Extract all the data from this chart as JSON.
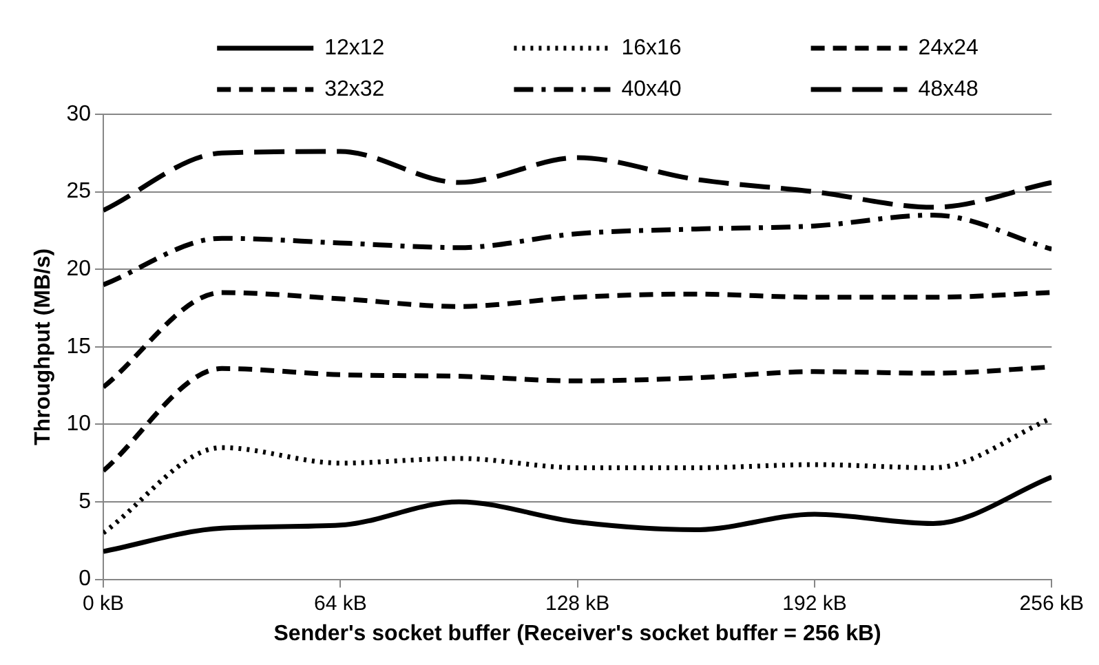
{
  "chart_data": {
    "type": "line",
    "xlabel": "Sender's socket buffer (Receiver's socket buffer = 256 kB)",
    "ylabel": "Throughput (MB/s)",
    "x": [
      0,
      32,
      64,
      96,
      128,
      160,
      192,
      224,
      256
    ],
    "xlim": [
      0,
      256
    ],
    "xticks": [
      {
        "value": 0,
        "label": "0 kB"
      },
      {
        "value": 64,
        "label": "64 kB"
      },
      {
        "value": 128,
        "label": "128 kB"
      },
      {
        "value": 192,
        "label": "192 kB"
      },
      {
        "value": 256,
        "label": "256 kB"
      }
    ],
    "ylim": [
      0,
      30
    ],
    "yticks": [
      0,
      5,
      10,
      15,
      20,
      25,
      30
    ],
    "grid": "y",
    "legend": "top",
    "marker": "none",
    "series": [
      {
        "name": "12x12",
        "color": "#000000",
        "line_style": "solid",
        "values": [
          1.8,
          3.3,
          3.5,
          5.0,
          3.7,
          3.2,
          4.2,
          3.6,
          6.6
        ]
      },
      {
        "name": "16x16",
        "color": "#000000",
        "line_style": "dotted",
        "values": [
          3.0,
          8.5,
          7.5,
          7.8,
          7.2,
          7.2,
          7.4,
          7.2,
          10.4
        ]
      },
      {
        "name": "24x24",
        "color": "#000000",
        "line_style": "dashed",
        "values": [
          7.0,
          13.6,
          13.2,
          13.1,
          12.8,
          13.0,
          13.4,
          13.3,
          13.7
        ]
      },
      {
        "name": "32x32",
        "color": "#000000",
        "line_style": "dashed",
        "values": [
          12.4,
          18.5,
          18.1,
          17.6,
          18.2,
          18.4,
          18.2,
          18.2,
          18.5
        ]
      },
      {
        "name": "40x40",
        "color": "#000000",
        "line_style": "dash-dot",
        "values": [
          19.0,
          22.0,
          21.7,
          21.4,
          22.3,
          22.6,
          22.8,
          23.5,
          21.3
        ]
      },
      {
        "name": "48x48",
        "color": "#000000",
        "line_style": "long-dash",
        "values": [
          23.8,
          27.5,
          27.6,
          25.6,
          27.2,
          25.8,
          25.0,
          24.0,
          25.6
        ]
      }
    ]
  }
}
